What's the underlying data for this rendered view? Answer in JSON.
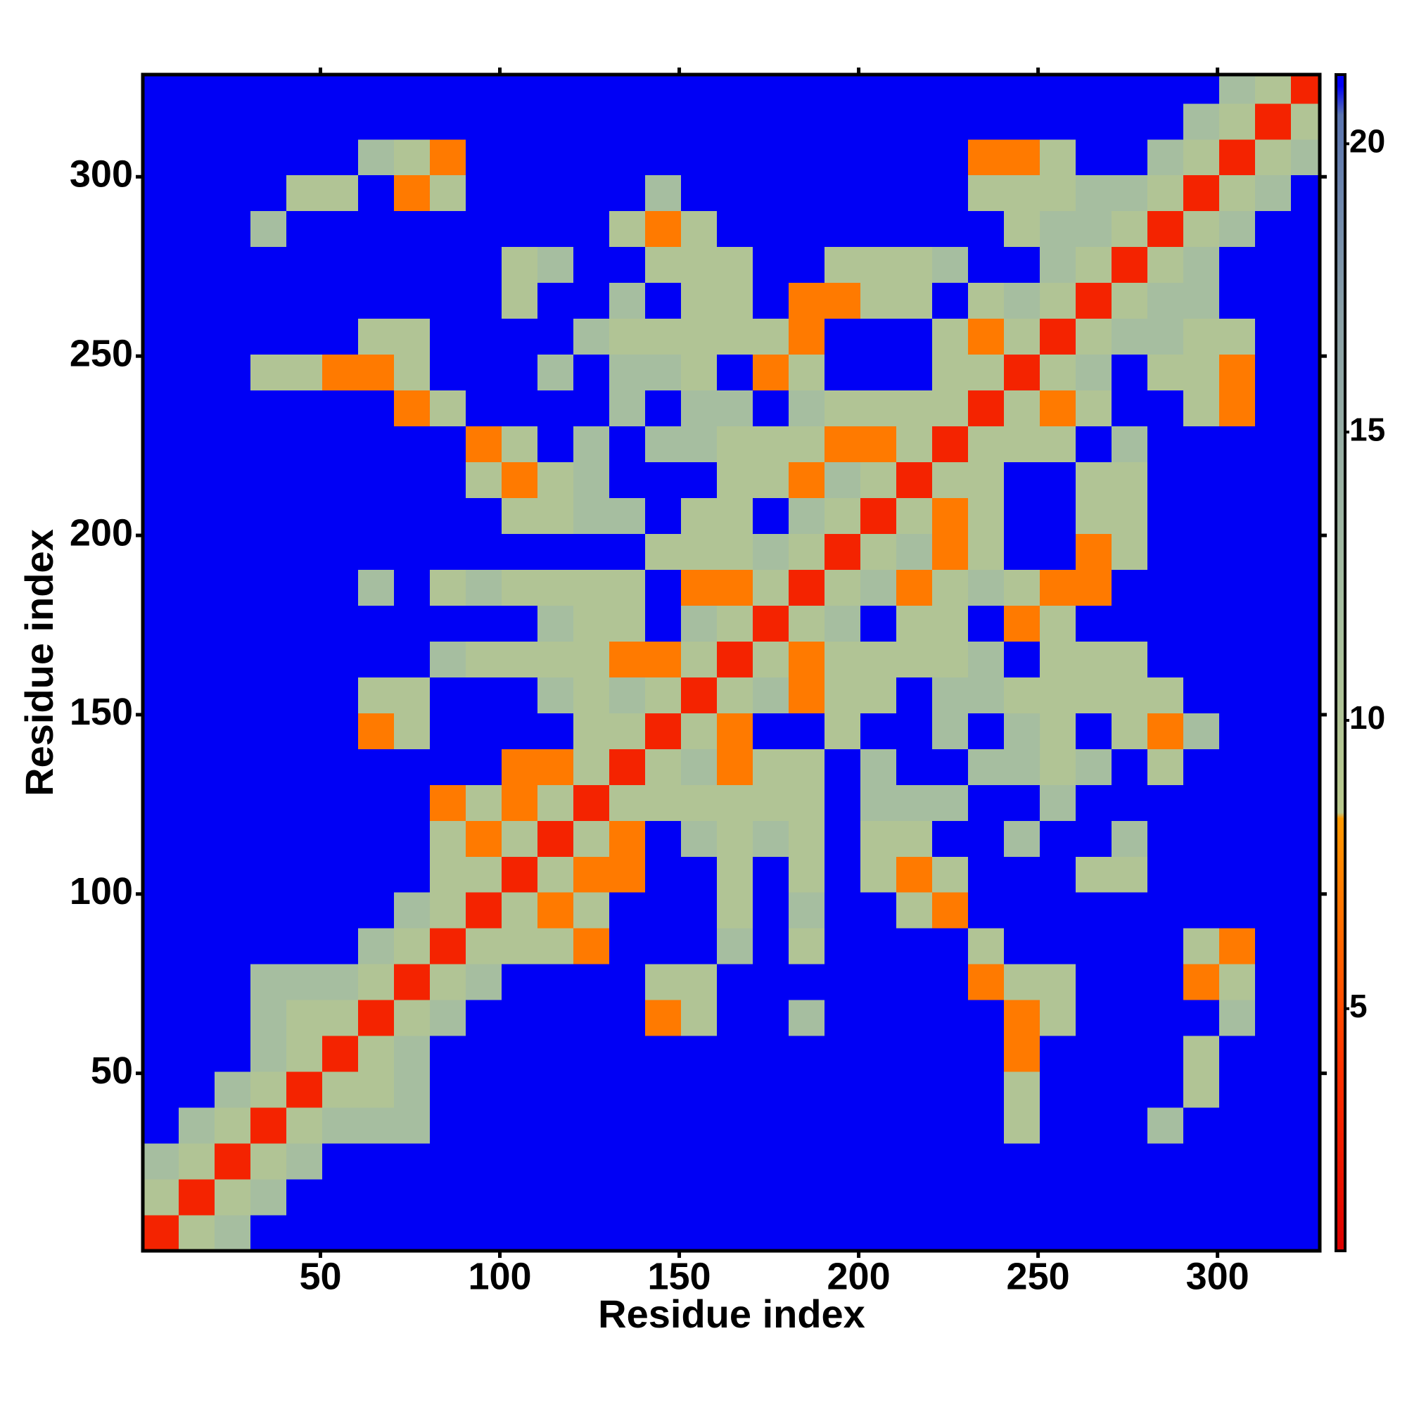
{
  "chart_data": {
    "type": "heatmap",
    "xlabel": "Residue index",
    "ylabel": "Residue index",
    "xlim": [
      0.5,
      328.5
    ],
    "ylim": [
      0.5,
      328.5
    ],
    "xticks": [
      50,
      100,
      150,
      200,
      250,
      300
    ],
    "yticks": [
      50,
      100,
      150,
      200,
      250,
      300
    ],
    "xbins": [
      0.5,
      10.5,
      20.5,
      30.5,
      40.5,
      50.5,
      60.5,
      70.5,
      80.5,
      90.5,
      100.5,
      110.5,
      120.5,
      130.5,
      140.5,
      150.5,
      160.5,
      170.5,
      180.5,
      190.5,
      200.5,
      210.5,
      220.5,
      230.5,
      240.5,
      250.5,
      260.5,
      270.5,
      280.5,
      290.5,
      300.5,
      310.5,
      320.5,
      328.5
    ],
    "ybins": [
      0.5,
      10.5,
      20.5,
      30.5,
      40.5,
      50.5,
      60.5,
      70.5,
      80.5,
      90.5,
      100.5,
      110.5,
      120.5,
      130.5,
      140.5,
      150.5,
      160.5,
      170.5,
      180.5,
      190.5,
      200.5,
      210.5,
      220.5,
      230.5,
      240.5,
      250.5,
      260.5,
      270.5,
      280.5,
      290.5,
      300.5,
      310.5,
      320.5,
      328.5
    ],
    "z": [
      [
        3,
        10,
        12,
        21,
        21,
        21,
        21,
        21,
        21,
        21,
        21,
        21,
        21,
        21,
        21,
        21,
        21,
        21,
        21,
        21,
        21,
        21,
        21,
        21,
        21,
        21,
        21,
        21,
        21,
        21,
        21,
        21,
        21
      ],
      [
        10,
        3,
        10,
        12,
        21,
        21,
        21,
        21,
        21,
        21,
        21,
        21,
        21,
        21,
        21,
        21,
        21,
        21,
        21,
        21,
        21,
        21,
        21,
        21,
        21,
        21,
        21,
        21,
        21,
        21,
        21,
        21,
        21
      ],
      [
        12,
        10,
        3,
        10,
        12,
        21,
        21,
        21,
        21,
        21,
        21,
        21,
        21,
        21,
        21,
        21,
        21,
        21,
        21,
        21,
        21,
        21,
        21,
        21,
        21,
        21,
        21,
        21,
        21,
        21,
        21,
        21,
        21
      ],
      [
        21,
        12,
        10,
        3,
        10,
        12,
        12,
        12,
        21,
        21,
        21,
        21,
        21,
        21,
        21,
        21,
        21,
        21,
        21,
        21,
        21,
        21,
        21,
        21,
        10,
        21,
        21,
        21,
        12,
        21,
        21,
        21,
        21
      ],
      [
        21,
        21,
        12,
        10,
        3,
        10,
        10,
        12,
        21,
        21,
        21,
        21,
        21,
        21,
        21,
        21,
        21,
        21,
        21,
        21,
        21,
        21,
        21,
        21,
        10,
        21,
        21,
        21,
        21,
        10,
        21,
        21,
        21
      ],
      [
        21,
        21,
        21,
        12,
        10,
        3,
        10,
        12,
        21,
        21,
        21,
        21,
        21,
        21,
        21,
        21,
        21,
        21,
        21,
        21,
        21,
        21,
        21,
        21,
        7,
        21,
        21,
        21,
        21,
        10,
        21,
        21,
        21
      ],
      [
        21,
        21,
        21,
        12,
        10,
        10,
        3,
        10,
        12,
        21,
        21,
        21,
        21,
        21,
        7,
        10,
        21,
        21,
        12,
        21,
        21,
        21,
        21,
        21,
        7,
        10,
        21,
        21,
        21,
        21,
        12,
        21,
        21
      ],
      [
        21,
        21,
        21,
        12,
        12,
        12,
        10,
        3,
        10,
        12,
        21,
        21,
        21,
        21,
        10,
        10,
        21,
        21,
        21,
        21,
        21,
        21,
        21,
        7,
        10,
        10,
        21,
        21,
        21,
        7,
        10,
        21,
        21
      ],
      [
        21,
        21,
        21,
        21,
        21,
        21,
        12,
        10,
        3,
        10,
        10,
        10,
        7,
        21,
        21,
        21,
        12,
        21,
        10,
        21,
        21,
        21,
        21,
        10,
        21,
        21,
        21,
        21,
        21,
        10,
        7,
        21,
        21
      ],
      [
        21,
        21,
        21,
        21,
        21,
        21,
        21,
        12,
        10,
        3,
        10,
        7,
        10,
        21,
        21,
        21,
        10,
        21,
        12,
        21,
        21,
        10,
        7,
        21,
        21,
        21,
        21,
        21,
        21,
        21,
        21,
        21,
        21
      ],
      [
        21,
        21,
        21,
        21,
        21,
        21,
        21,
        21,
        10,
        10,
        3,
        10,
        7,
        7,
        21,
        21,
        10,
        21,
        10,
        21,
        10,
        7,
        10,
        21,
        21,
        21,
        10,
        10,
        21,
        21,
        21,
        21,
        21
      ],
      [
        21,
        21,
        21,
        21,
        21,
        21,
        21,
        21,
        10,
        7,
        10,
        3,
        10,
        7,
        21,
        12,
        10,
        12,
        10,
        21,
        10,
        10,
        21,
        21,
        12,
        21,
        21,
        12,
        21,
        21,
        21,
        21,
        21
      ],
      [
        21,
        21,
        21,
        21,
        21,
        21,
        21,
        21,
        7,
        10,
        7,
        10,
        3,
        10,
        10,
        10,
        10,
        10,
        10,
        21,
        12,
        12,
        12,
        21,
        21,
        12,
        21,
        21,
        21,
        21,
        21,
        21,
        21
      ],
      [
        21,
        21,
        21,
        21,
        21,
        21,
        21,
        21,
        21,
        21,
        7,
        7,
        10,
        3,
        10,
        12,
        7,
        10,
        10,
        21,
        12,
        21,
        21,
        12,
        12,
        10,
        12,
        21,
        10,
        21,
        21,
        21,
        21
      ],
      [
        21,
        21,
        21,
        21,
        21,
        21,
        7,
        10,
        21,
        21,
        21,
        21,
        10,
        10,
        3,
        10,
        7,
        21,
        21,
        10,
        21,
        21,
        12,
        21,
        12,
        10,
        21,
        10,
        7,
        12,
        21,
        21,
        21
      ],
      [
        21,
        21,
        21,
        21,
        21,
        21,
        10,
        10,
        21,
        21,
        21,
        12,
        10,
        12,
        10,
        3,
        10,
        12,
        7,
        10,
        10,
        21,
        12,
        12,
        10,
        10,
        10,
        10,
        10,
        21,
        21,
        21,
        21
      ],
      [
        21,
        21,
        21,
        21,
        21,
        21,
        21,
        21,
        12,
        10,
        10,
        10,
        10,
        7,
        7,
        10,
        3,
        10,
        7,
        10,
        10,
        10,
        10,
        12,
        21,
        10,
        10,
        10,
        21,
        21,
        21,
        21,
        21
      ],
      [
        21,
        21,
        21,
        21,
        21,
        21,
        21,
        21,
        21,
        21,
        21,
        12,
        10,
        10,
        21,
        12,
        10,
        3,
        10,
        12,
        21,
        10,
        10,
        21,
        7,
        10,
        21,
        21,
        21,
        21,
        21,
        21,
        21
      ],
      [
        21,
        21,
        21,
        21,
        21,
        21,
        12,
        21,
        10,
        12,
        10,
        10,
        10,
        10,
        21,
        7,
        7,
        10,
        3,
        10,
        12,
        7,
        10,
        12,
        10,
        7,
        7,
        21,
        21,
        21,
        21,
        21,
        21
      ],
      [
        21,
        21,
        21,
        21,
        21,
        21,
        21,
        21,
        21,
        21,
        21,
        21,
        21,
        21,
        10,
        10,
        10,
        12,
        10,
        3,
        10,
        12,
        7,
        10,
        21,
        21,
        7,
        10,
        21,
        21,
        21,
        21,
        21
      ],
      [
        21,
        21,
        21,
        21,
        21,
        21,
        21,
        21,
        21,
        21,
        10,
        10,
        12,
        12,
        21,
        10,
        10,
        21,
        12,
        10,
        3,
        10,
        7,
        10,
        21,
        21,
        10,
        10,
        21,
        21,
        21,
        21,
        21
      ],
      [
        21,
        21,
        21,
        21,
        21,
        21,
        21,
        21,
        21,
        10,
        7,
        10,
        12,
        21,
        21,
        21,
        10,
        10,
        7,
        12,
        10,
        3,
        10,
        10,
        21,
        21,
        10,
        10,
        21,
        21,
        21,
        21,
        21
      ],
      [
        21,
        21,
        21,
        21,
        21,
        21,
        21,
        21,
        21,
        7,
        10,
        21,
        12,
        21,
        12,
        12,
        10,
        10,
        10,
        7,
        7,
        10,
        3,
        10,
        10,
        10,
        21,
        12,
        21,
        21,
        21,
        21,
        21
      ],
      [
        21,
        21,
        21,
        21,
        21,
        21,
        21,
        7,
        10,
        21,
        21,
        21,
        21,
        12,
        21,
        12,
        12,
        21,
        12,
        10,
        10,
        10,
        10,
        3,
        10,
        7,
        10,
        21,
        21,
        10,
        7,
        21,
        21
      ],
      [
        21,
        21,
        21,
        10,
        10,
        7,
        7,
        10,
        21,
        21,
        21,
        12,
        21,
        12,
        12,
        10,
        21,
        7,
        10,
        21,
        21,
        21,
        10,
        10,
        3,
        10,
        12,
        21,
        10,
        10,
        7,
        21,
        21
      ],
      [
        21,
        21,
        21,
        21,
        21,
        21,
        10,
        10,
        21,
        21,
        21,
        21,
        12,
        10,
        10,
        10,
        10,
        10,
        7,
        21,
        21,
        21,
        10,
        7,
        10,
        3,
        10,
        12,
        12,
        10,
        10,
        21,
        21
      ],
      [
        21,
        21,
        21,
        21,
        21,
        21,
        21,
        21,
        21,
        21,
        10,
        21,
        21,
        12,
        21,
        10,
        10,
        21,
        7,
        7,
        10,
        10,
        21,
        10,
        12,
        10,
        3,
        10,
        12,
        12,
        21,
        21,
        21
      ],
      [
        21,
        21,
        21,
        21,
        21,
        21,
        21,
        21,
        21,
        21,
        10,
        12,
        21,
        21,
        10,
        10,
        10,
        21,
        21,
        10,
        10,
        10,
        12,
        21,
        21,
        12,
        10,
        3,
        10,
        12,
        21,
        21,
        21
      ],
      [
        21,
        21,
        21,
        12,
        21,
        21,
        21,
        21,
        21,
        21,
        21,
        21,
        21,
        10,
        7,
        10,
        21,
        21,
        21,
        21,
        21,
        21,
        21,
        21,
        10,
        12,
        12,
        10,
        3,
        10,
        12,
        21,
        21
      ],
      [
        21,
        21,
        21,
        21,
        10,
        10,
        21,
        7,
        10,
        21,
        21,
        21,
        21,
        21,
        12,
        21,
        21,
        21,
        21,
        21,
        21,
        21,
        21,
        10,
        10,
        10,
        12,
        12,
        10,
        3,
        10,
        12,
        21
      ],
      [
        21,
        21,
        21,
        21,
        21,
        21,
        12,
        10,
        7,
        21,
        21,
        21,
        21,
        21,
        21,
        21,
        21,
        21,
        21,
        21,
        21,
        21,
        21,
        7,
        7,
        10,
        21,
        21,
        12,
        10,
        3,
        10,
        12
      ],
      [
        21,
        21,
        21,
        21,
        21,
        21,
        21,
        21,
        21,
        21,
        21,
        21,
        21,
        21,
        21,
        21,
        21,
        21,
        21,
        21,
        21,
        21,
        21,
        21,
        21,
        21,
        21,
        21,
        21,
        12,
        10,
        3,
        10
      ],
      [
        21,
        21,
        21,
        21,
        21,
        21,
        21,
        21,
        21,
        21,
        21,
        21,
        21,
        21,
        21,
        21,
        21,
        21,
        21,
        21,
        21,
        21,
        21,
        21,
        21,
        21,
        21,
        21,
        21,
        21,
        12,
        10,
        3
      ]
    ],
    "colorscale": [
      [
        0.8,
        "#dd0000"
      ],
      [
        4,
        "#ff3300"
      ],
      [
        8.3,
        "#ff9900"
      ],
      [
        8.4,
        "#b9c98c"
      ],
      [
        12,
        "#a6bea0"
      ],
      [
        17,
        "#8aa0a6"
      ],
      [
        20.5,
        "#5a74b0"
      ],
      [
        21,
        "#0000f5"
      ]
    ],
    "colorbar": {
      "lim": [
        0.8,
        21.2
      ],
      "ticks": [
        5,
        10,
        15,
        20
      ]
    }
  }
}
